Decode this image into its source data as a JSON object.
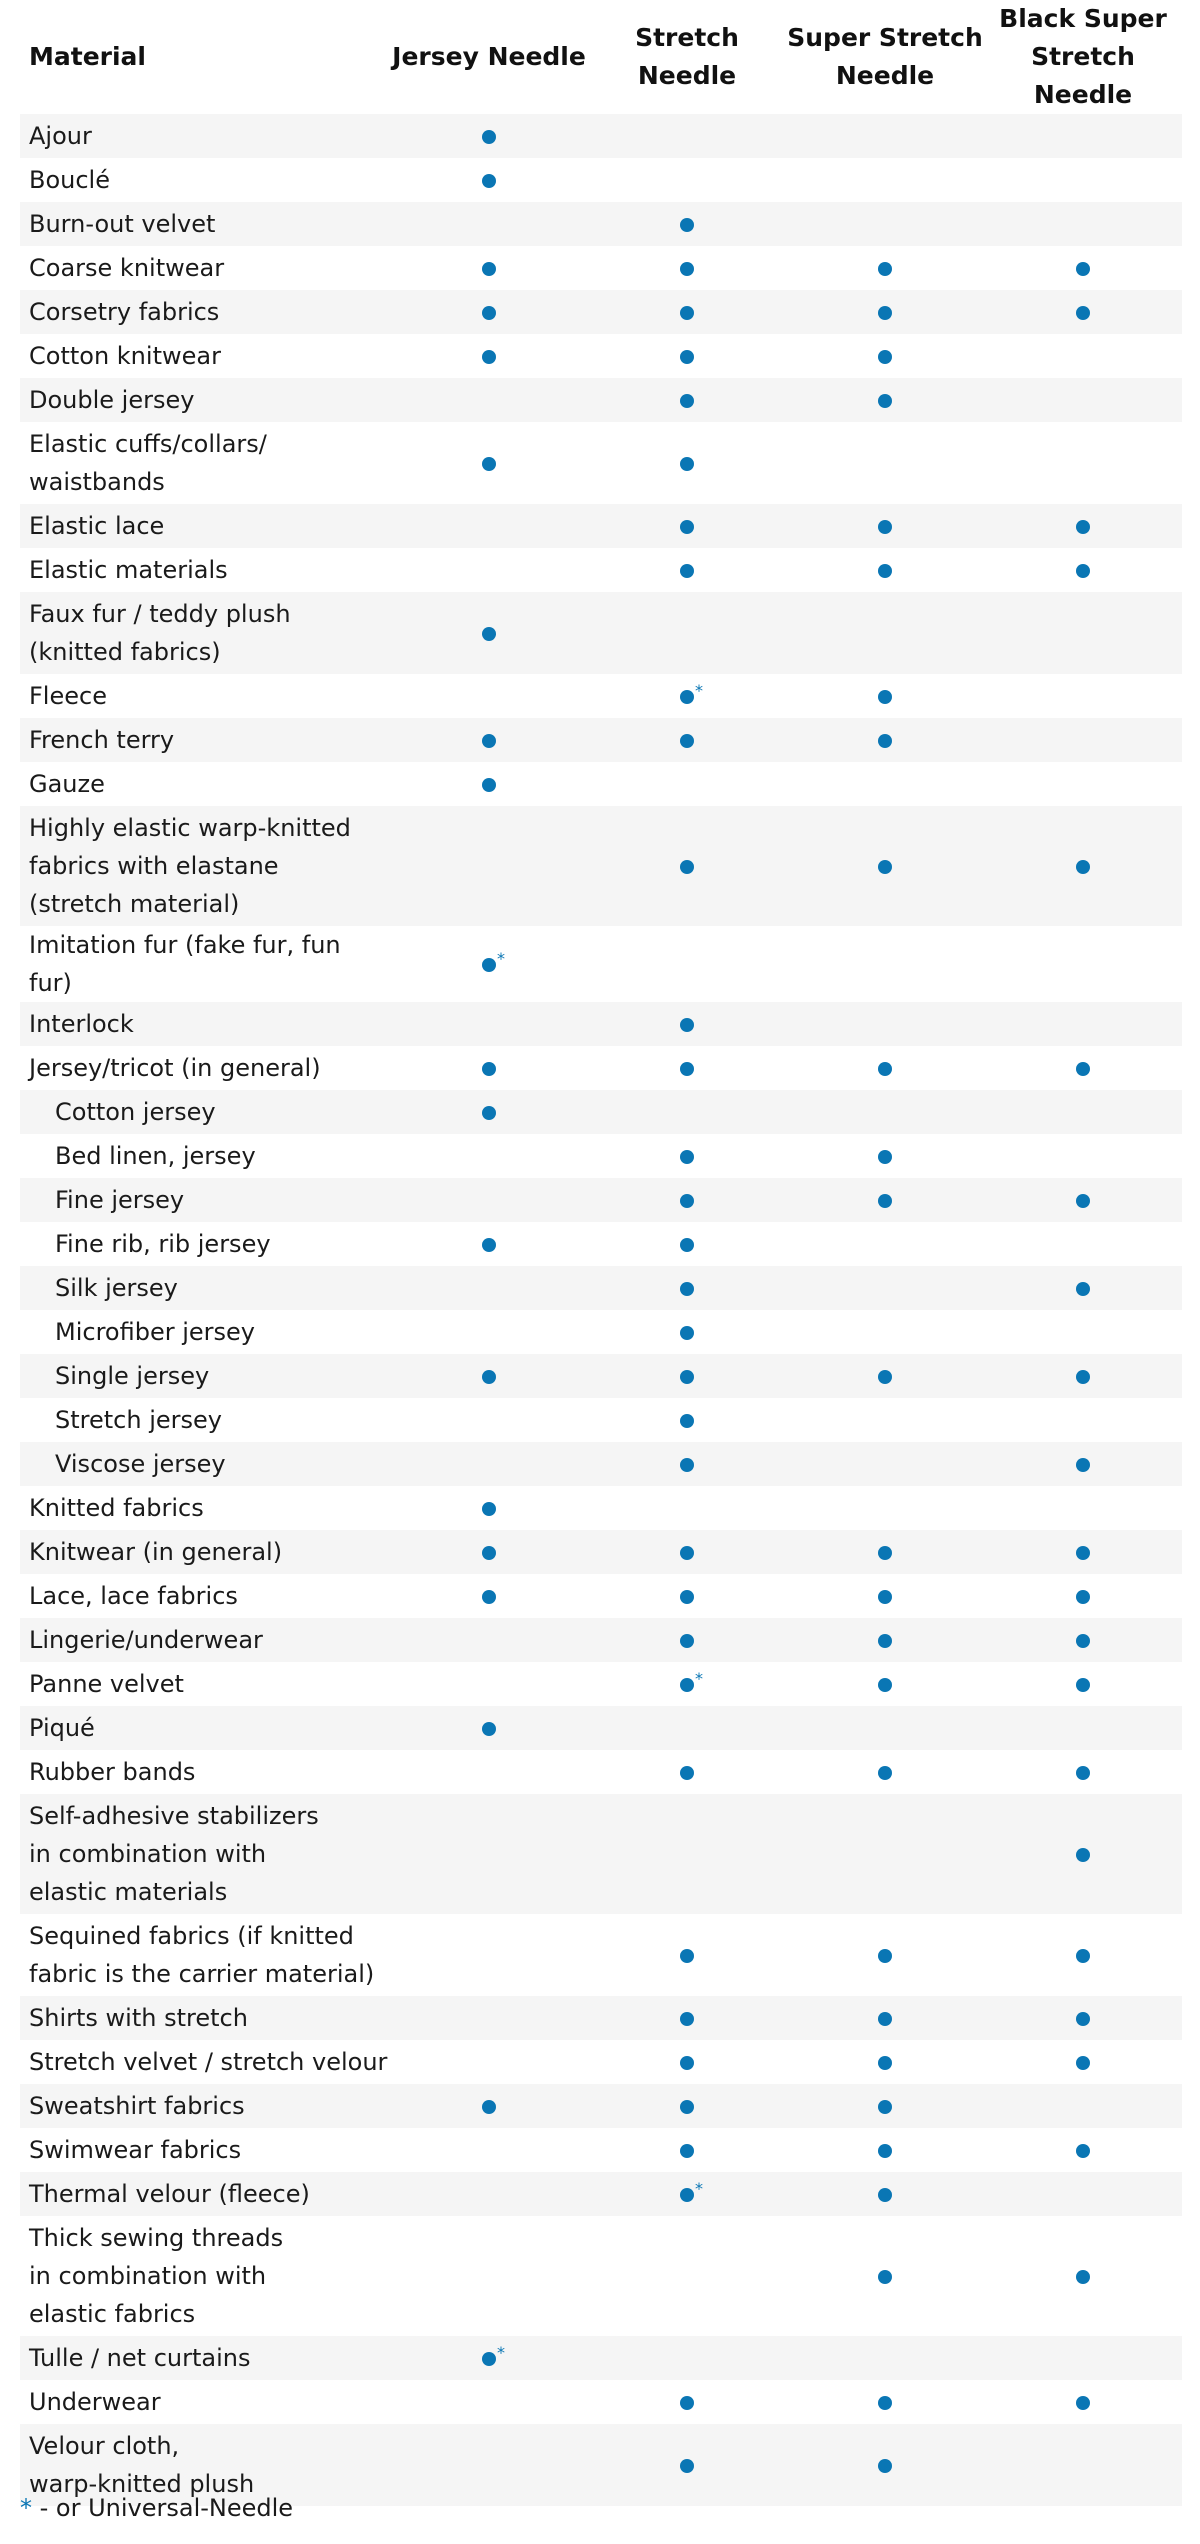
{
  "table": {
    "headers": {
      "material": "Material",
      "needles": [
        "Jersey Needle",
        "Stretch Needle",
        "Super Stretch\nNeedle",
        "Black Super\nStretch Needle"
      ]
    },
    "colors": {
      "dot": "#0a76b4",
      "row_shade": "#f5f5f5"
    },
    "legend_marks": {
      "dot": "suitable",
      "star": "*"
    },
    "rows": [
      {
        "material": "Ajour",
        "jersey": "dot",
        "stretch": "",
        "super": "",
        "black": ""
      },
      {
        "material": "Bouclé",
        "jersey": "dot",
        "stretch": "",
        "super": "",
        "black": ""
      },
      {
        "material": "Burn-out velvet",
        "jersey": "",
        "stretch": "dot",
        "super": "",
        "black": ""
      },
      {
        "material": "Coarse knitwear",
        "jersey": "dot",
        "stretch": "dot",
        "super": "dot",
        "black": "dot"
      },
      {
        "material": "Corsetry fabrics",
        "jersey": "dot",
        "stretch": "dot",
        "super": "dot",
        "black": "dot"
      },
      {
        "material": "Cotton knitwear",
        "jersey": "dot",
        "stretch": "dot",
        "super": "dot",
        "black": ""
      },
      {
        "material": "Double jersey",
        "jersey": "",
        "stretch": "dot",
        "super": "dot",
        "black": ""
      },
      {
        "material": "Elastic cuffs/collars/\nwaistbands",
        "jersey": "dot",
        "stretch": "dot",
        "super": "",
        "black": ""
      },
      {
        "material": "Elastic lace",
        "jersey": "",
        "stretch": "dot",
        "super": "dot",
        "black": "dot"
      },
      {
        "material": "Elastic materials",
        "jersey": "",
        "stretch": "dot",
        "super": "dot",
        "black": "dot"
      },
      {
        "material": "Faux fur / teddy plush\n(knitted fabrics)",
        "jersey": "dot",
        "stretch": "",
        "super": "",
        "black": ""
      },
      {
        "material": "Fleece",
        "jersey": "",
        "stretch": "dot*",
        "super": "dot",
        "black": ""
      },
      {
        "material": "French terry",
        "jersey": "dot",
        "stretch": "dot",
        "super": "dot",
        "black": ""
      },
      {
        "material": "Gauze",
        "jersey": "dot",
        "stretch": "",
        "super": "",
        "black": ""
      },
      {
        "material": "Highly elastic warp-knitted\nfabrics with elastane\n(stretch material)",
        "jersey": "",
        "stretch": "dot",
        "super": "dot",
        "black": "dot"
      },
      {
        "material": "Imitation fur (fake fur, fun fur)",
        "jersey": "dot*",
        "stretch": "",
        "super": "",
        "black": ""
      },
      {
        "material": "Interlock",
        "jersey": "",
        "stretch": "dot",
        "super": "",
        "black": ""
      },
      {
        "material": "Jersey/tricot (in general)",
        "jersey": "dot",
        "stretch": "dot",
        "super": "dot",
        "black": "dot"
      },
      {
        "material": "Cotton jersey",
        "sub": true,
        "jersey": "dot",
        "stretch": "",
        "super": "",
        "black": ""
      },
      {
        "material": "Bed linen, jersey",
        "sub": true,
        "jersey": "",
        "stretch": "dot",
        "super": "dot",
        "black": ""
      },
      {
        "material": "Fine jersey",
        "sub": true,
        "jersey": "",
        "stretch": "dot",
        "super": "dot",
        "black": "dot"
      },
      {
        "material": "Fine rib, rib jersey",
        "sub": true,
        "jersey": "dot",
        "stretch": "dot",
        "super": "",
        "black": ""
      },
      {
        "material": "Silk jersey",
        "sub": true,
        "jersey": "",
        "stretch": "dot",
        "super": "",
        "black": "dot"
      },
      {
        "material": "Microfiber jersey",
        "sub": true,
        "jersey": "",
        "stretch": "dot",
        "super": "",
        "black": ""
      },
      {
        "material": "Single jersey",
        "sub": true,
        "jersey": "dot",
        "stretch": "dot",
        "super": "dot",
        "black": "dot"
      },
      {
        "material": "Stretch jersey",
        "sub": true,
        "jersey": "",
        "stretch": "dot",
        "super": "",
        "black": ""
      },
      {
        "material": "Viscose jersey",
        "sub": true,
        "jersey": "",
        "stretch": "dot",
        "super": "",
        "black": "dot"
      },
      {
        "material": "Knitted fabrics",
        "jersey": "dot",
        "stretch": "",
        "super": "",
        "black": ""
      },
      {
        "material": "Knitwear (in general)",
        "jersey": "dot",
        "stretch": "dot",
        "super": "dot",
        "black": "dot"
      },
      {
        "material": "Lace, lace fabrics",
        "jersey": "dot",
        "stretch": "dot",
        "super": "dot",
        "black": "dot"
      },
      {
        "material": "Lingerie/underwear",
        "jersey": "",
        "stretch": "dot",
        "super": "dot",
        "black": "dot"
      },
      {
        "material": "Panne velvet",
        "jersey": "",
        "stretch": "dot*",
        "super": "dot",
        "black": "dot"
      },
      {
        "material": "Piqué",
        "jersey": "dot",
        "stretch": "",
        "super": "",
        "black": ""
      },
      {
        "material": "Rubber bands",
        "jersey": "",
        "stretch": "dot",
        "super": "dot",
        "black": "dot"
      },
      {
        "material": "Self-adhesive stabilizers\nin combination with\nelastic materials",
        "jersey": "",
        "stretch": "",
        "super": "",
        "black": "dot"
      },
      {
        "material": "Sequined fabrics (if knitted\nfabric is the carrier material)",
        "jersey": "",
        "stretch": "dot",
        "super": "dot",
        "black": "dot"
      },
      {
        "material": "Shirts with stretch",
        "jersey": "",
        "stretch": "dot",
        "super": "dot",
        "black": "dot"
      },
      {
        "material": "Stretch velvet / stretch velour",
        "jersey": "",
        "stretch": "dot",
        "super": "dot",
        "black": "dot"
      },
      {
        "material": "Sweatshirt fabrics",
        "jersey": "dot",
        "stretch": "dot",
        "super": "dot",
        "black": ""
      },
      {
        "material": "Swimwear fabrics",
        "jersey": "",
        "stretch": "dot",
        "super": "dot",
        "black": "dot"
      },
      {
        "material": "Thermal velour (fleece)",
        "jersey": "",
        "stretch": "dot*",
        "super": "dot",
        "black": ""
      },
      {
        "material": "Thick sewing threads\nin combination with\nelastic fabrics",
        "jersey": "",
        "stretch": "",
        "super": "dot",
        "black": "dot"
      },
      {
        "material": "Tulle / net curtains",
        "jersey": "dot*",
        "stretch": "",
        "super": "",
        "black": ""
      },
      {
        "material": "Underwear",
        "jersey": "",
        "stretch": "dot",
        "super": "dot",
        "black": "dot"
      },
      {
        "material": "Velour cloth,\nwarp-knitted plush",
        "jersey": "",
        "stretch": "dot",
        "super": "dot",
        "black": ""
      }
    ]
  },
  "footnote": {
    "star": "*",
    "text": " - or Universal-Needle"
  }
}
